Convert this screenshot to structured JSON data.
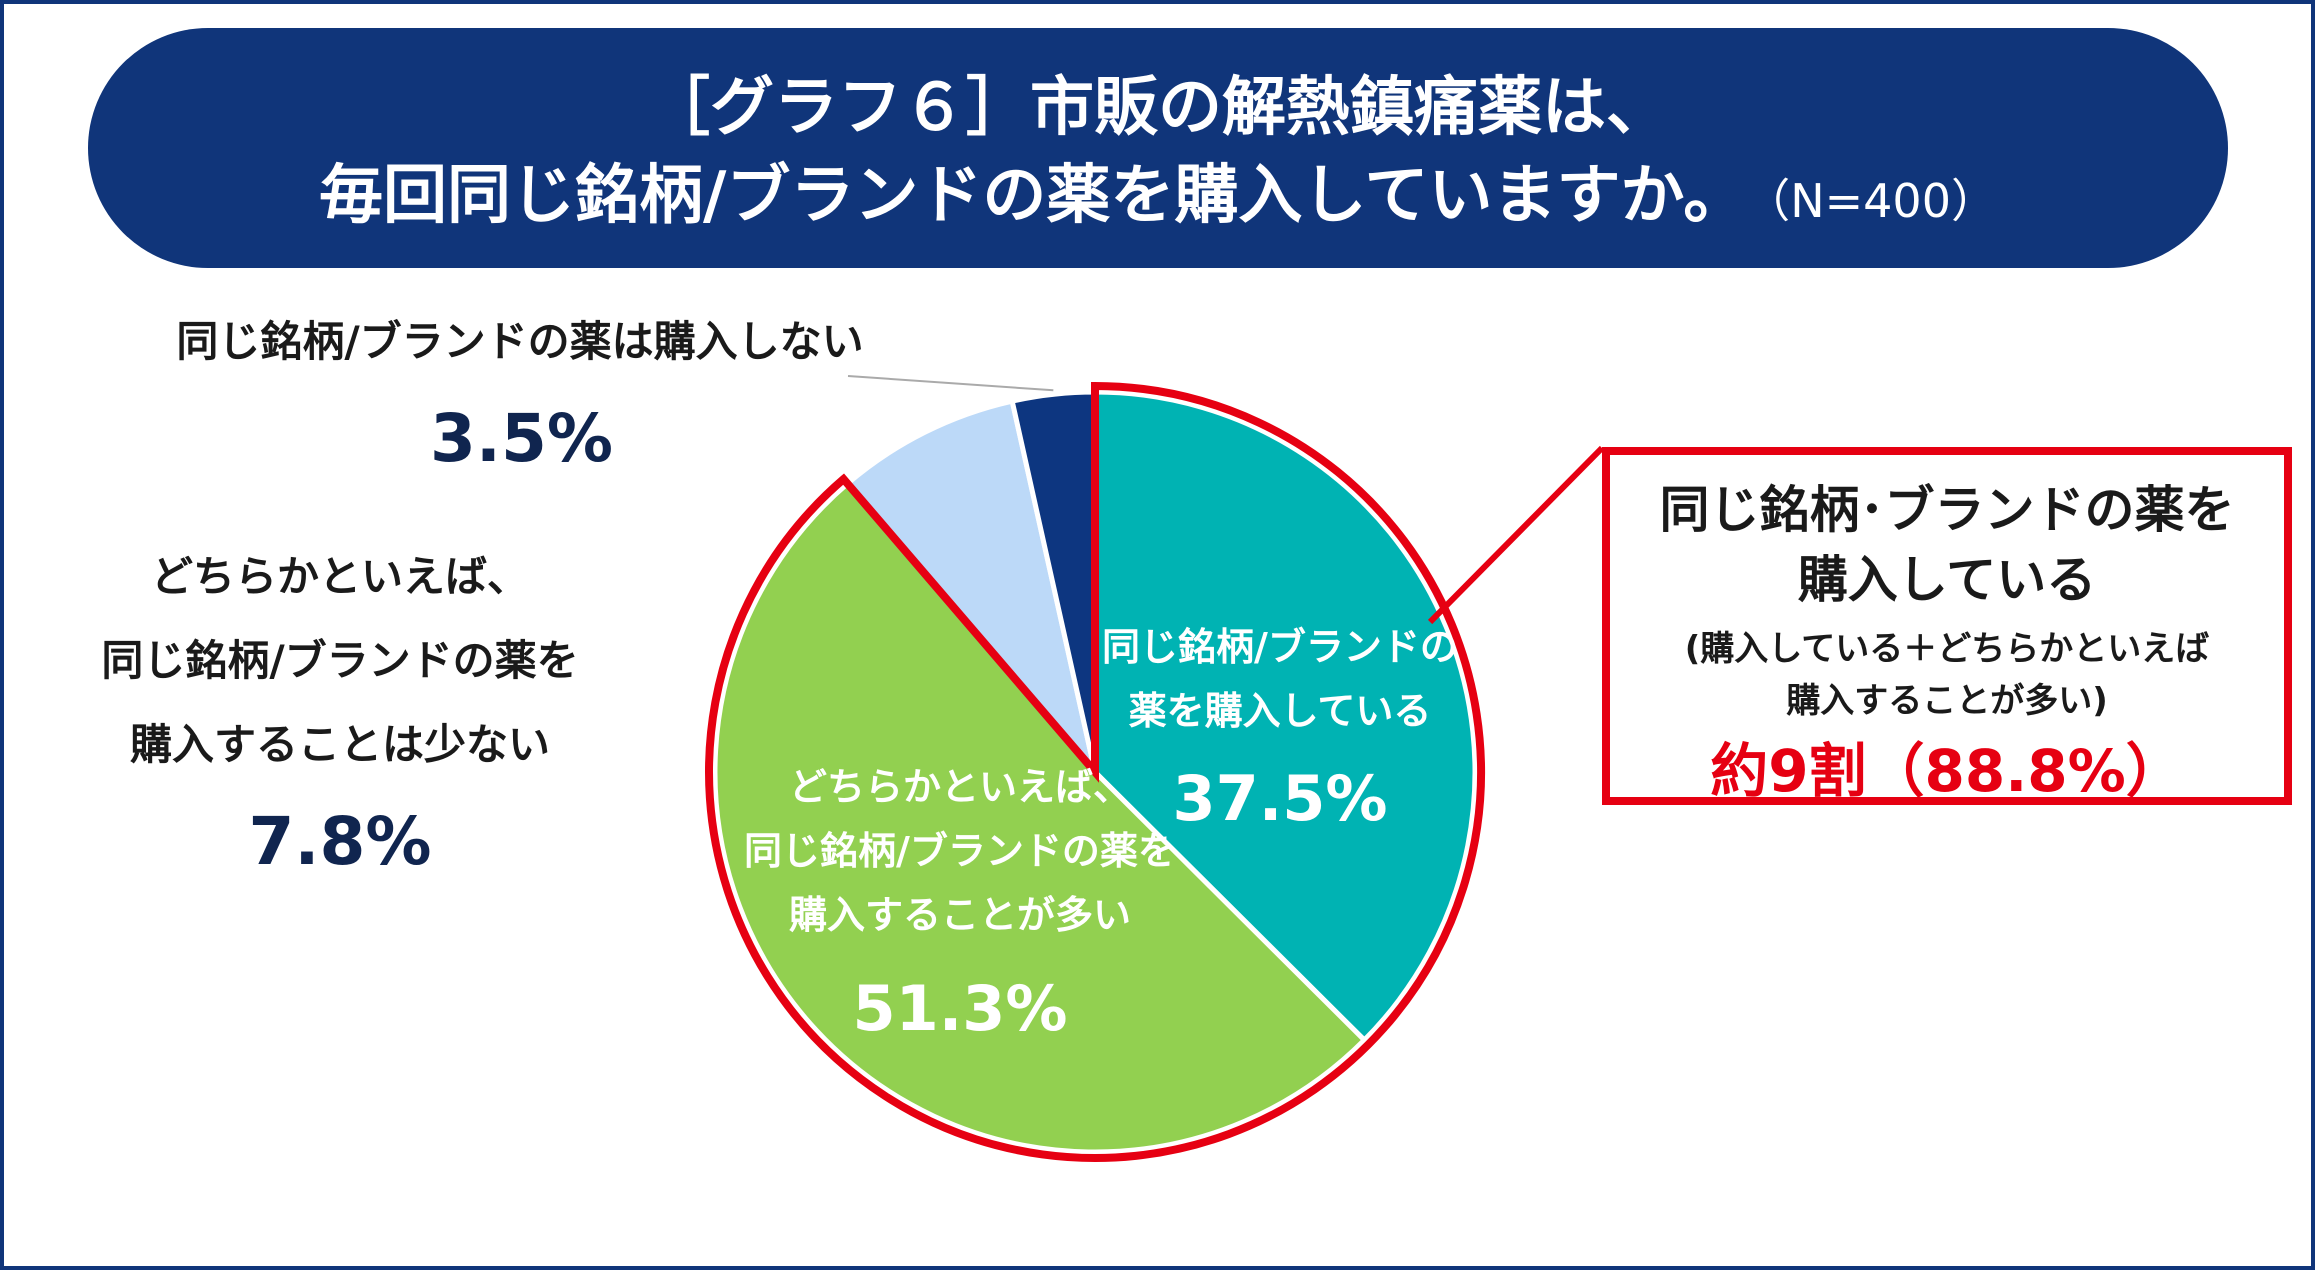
{
  "title": {
    "line1": "［グラフ６］市販の解熱鎮痛薬は、",
    "line2": "毎回同じ銘柄/ブランドの薬を購入していますか。",
    "n": "（N=400）"
  },
  "colors": {
    "navy": "#10357a",
    "teal": "#00b3b3",
    "green": "#92d050",
    "lightblue": "#bcd9f8",
    "darknavy": "#0d3680",
    "highlight": "#e60012"
  },
  "chart_data": {
    "type": "pie",
    "start_angle_deg": 0,
    "direction": "clockwise",
    "slices": [
      {
        "label_lines": [
          "同じ銘柄/ブランドの",
          "薬を購入している"
        ],
        "value": 37.5,
        "value_label": "37.5%",
        "color": "#00b3b3"
      },
      {
        "label_lines": [
          "どちらかといえば、",
          "同じ銘柄/ブランドの薬を",
          "購入することが多い"
        ],
        "value": 51.3,
        "value_label": "51.3%",
        "color": "#92d050"
      },
      {
        "label_lines": [
          "どちらかといえば、",
          "同じ銘柄/ブランドの薬を",
          "購入することは少ない"
        ],
        "value": 7.8,
        "value_label": "7.8%",
        "color": "#bcd9f8"
      },
      {
        "label_lines": [
          "同じ銘柄/ブランドの薬は購入しない"
        ],
        "value": 3.5,
        "value_label": "3.5%",
        "color": "#0d3680"
      }
    ]
  },
  "callout": {
    "title_line1": "同じ銘柄･ブランドの薬を",
    "title_line2": "購入している",
    "sub_line1": "(購入している＋どちらかといえば",
    "sub_line2": "購入することが多い)",
    "big": "約9割（88.8%）"
  }
}
